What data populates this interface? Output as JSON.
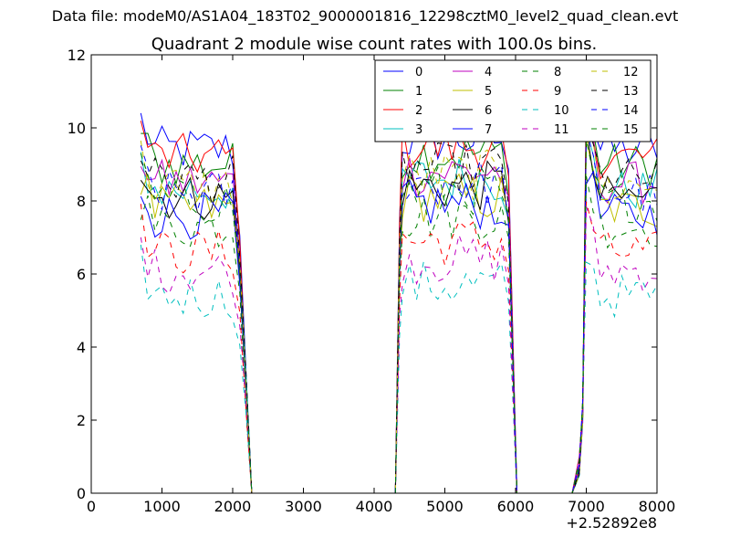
{
  "chart_data": {
    "type": "line",
    "suptitle": "Data file: modeM0/AS1A04_183T02_9000001816_12298cztM0_level2_quad_clean.evt",
    "title": "Quadrant 2 module wise count rates with 100.0s bins.",
    "xlabel": "",
    "ylabel": "",
    "x_offset_label": "+2.52892e8",
    "xlim": [
      0,
      8000
    ],
    "ylim": [
      0,
      12
    ],
    "xticks": [
      "0",
      "1000",
      "2000",
      "3000",
      "4000",
      "5000",
      "6000",
      "7000",
      "8000"
    ],
    "yticks": [
      "0",
      "2",
      "4",
      "6",
      "8",
      "10",
      "12"
    ],
    "grid": false,
    "legend_position": "top-right",
    "series": [
      {
        "name": "0",
        "color": "#0000ff",
        "dash": "solid",
        "level": 9.4
      },
      {
        "name": "1",
        "color": "#008000",
        "dash": "solid",
        "level": 9.0
      },
      {
        "name": "2",
        "color": "#ff0000",
        "dash": "solid",
        "level": 9.2
      },
      {
        "name": "3",
        "color": "#00bfbf",
        "dash": "solid",
        "level": 8.3
      },
      {
        "name": "4",
        "color": "#bf00bf",
        "dash": "solid",
        "level": 8.5
      },
      {
        "name": "5",
        "color": "#bfbf00",
        "dash": "solid",
        "level": 7.8
      },
      {
        "name": "6",
        "color": "#000000",
        "dash": "solid",
        "level": 8.1
      },
      {
        "name": "7",
        "color": "#0000ff",
        "dash": "solid",
        "level": 7.6
      },
      {
        "name": "8",
        "color": "#008000",
        "dash": "dashed",
        "level": 7.3
      },
      {
        "name": "9",
        "color": "#ff0000",
        "dash": "dashed",
        "level": 6.6
      },
      {
        "name": "10",
        "color": "#00bfbf",
        "dash": "dashed",
        "level": 5.4
      },
      {
        "name": "11",
        "color": "#bf00bf",
        "dash": "dashed",
        "level": 6.1
      },
      {
        "name": "12",
        "color": "#bfbf00",
        "dash": "dashed",
        "level": 8.4
      },
      {
        "name": "13",
        "color": "#000000",
        "dash": "dashed",
        "level": 8.6
      },
      {
        "name": "14",
        "color": "#0000ff",
        "dash": "dashed",
        "level": 8.2
      },
      {
        "name": "15",
        "color": "#008000",
        "dash": "dashed",
        "level": 8.0
      }
    ],
    "segments": [
      {
        "start": 700,
        "end": 2050,
        "fall_end": 2250
      },
      {
        "rise_start": 4300,
        "start": 4400,
        "end": 5850,
        "fall_end": 6020
      },
      {
        "rise_start": 6800,
        "start": 7000,
        "end": 8000,
        "fall_end": null
      }
    ],
    "bin_width": 100
  }
}
